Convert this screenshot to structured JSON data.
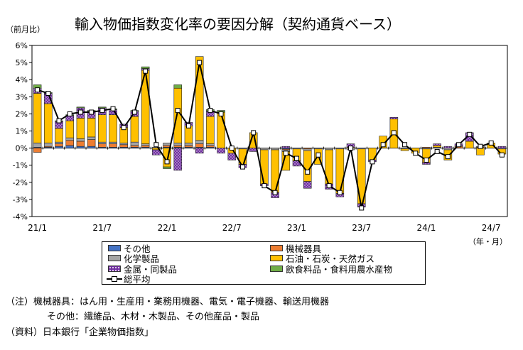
{
  "title": "輸入物価指数変化率の要因分解（契約通貨ベース）",
  "unit_label": "（前月比）",
  "period_label": "（年・月）",
  "chart_data": {
    "type": "bar",
    "subtype": "stacked-bar-with-line",
    "ylim": [
      -4,
      6
    ],
    "yticks": [
      "6%",
      "5%",
      "4%",
      "3%",
      "2%",
      "1%",
      "0%",
      "-1%",
      "-2%",
      "-3%",
      "-4%"
    ],
    "xtick_labels": [
      "21/1",
      "21/7",
      "22/1",
      "22/7",
      "23/1",
      "23/7",
      "24/1",
      "24/7"
    ],
    "months": [
      "21/1",
      "21/2",
      "21/3",
      "21/4",
      "21/5",
      "21/6",
      "21/7",
      "21/8",
      "21/9",
      "21/10",
      "21/11",
      "21/12",
      "22/1",
      "22/2",
      "22/3",
      "22/4",
      "22/5",
      "22/6",
      "22/7",
      "22/8",
      "22/9",
      "22/10",
      "22/11",
      "22/12",
      "23/1",
      "23/2",
      "23/3",
      "23/4",
      "23/5",
      "23/6",
      "23/7",
      "23/8",
      "23/9",
      "23/10",
      "23/11",
      "23/12",
      "24/1",
      "24/2",
      "24/3",
      "24/4",
      "24/5",
      "24/6",
      "24/7",
      "24/8"
    ],
    "series": [
      {
        "name": "その他",
        "color": "#4472c4",
        "values": [
          0.05,
          0.05,
          0.1,
          0.15,
          0.1,
          0.1,
          0.05,
          0.05,
          0.05,
          0.05,
          0.05,
          0.0,
          0.05,
          0.05,
          0.05,
          0.05,
          0.05,
          0.0,
          0.0,
          0.0,
          0.0,
          0.0,
          0.0,
          -0.05,
          0.0,
          0.0,
          0.0,
          0.0,
          0.0,
          0.0,
          0.0,
          0.0,
          0.0,
          0.0,
          0.0,
          0.0,
          0.0,
          0.0,
          0.0,
          0.0,
          0.0,
          0.0,
          0.0,
          0.0
        ]
      },
      {
        "name": "機械器具",
        "color": "#ed7d31",
        "values": [
          -0.25,
          0.05,
          0.15,
          0.3,
          0.3,
          0.4,
          0.2,
          0.2,
          0.15,
          0.1,
          0.1,
          0.0,
          0.1,
          0.1,
          0.1,
          0.2,
          0.1,
          0.0,
          0.0,
          0.0,
          0.0,
          0.0,
          0.0,
          -0.05,
          0.0,
          -0.05,
          0.0,
          0.0,
          0.0,
          0.0,
          0.0,
          0.0,
          0.0,
          0.0,
          0.0,
          0.0,
          0.05,
          0.0,
          0.0,
          0.1,
          0.0,
          0.05,
          0.0,
          0.0
        ]
      },
      {
        "name": "化学製品",
        "color": "#a5a5a5",
        "values": [
          0.25,
          0.2,
          0.1,
          0.15,
          0.15,
          0.15,
          0.1,
          0.1,
          0.1,
          0.2,
          0.1,
          0.05,
          0.15,
          0.15,
          0.15,
          0.2,
          0.1,
          0.0,
          0.0,
          -0.05,
          0.0,
          -0.1,
          -0.1,
          -0.1,
          -0.05,
          -0.1,
          -0.05,
          -0.1,
          -0.05,
          -0.1,
          -0.05,
          0.0,
          0.0,
          0.0,
          -0.05,
          0.0,
          -0.05,
          0.05,
          -0.1,
          0.05,
          0.0,
          0.05,
          0.0,
          -0.05
        ]
      },
      {
        "name": "石油・石炭・天然ガス",
        "color": "#ffc000",
        "values": [
          2.9,
          2.3,
          0.8,
          1.0,
          1.2,
          1.1,
          1.6,
          1.6,
          0.9,
          1.5,
          4.3,
          -0.1,
          -1.1,
          3.2,
          1.0,
          4.9,
          1.6,
          2.1,
          -0.3,
          -0.9,
          0.9,
          -2.0,
          -2.5,
          -1.1,
          -0.7,
          -1.8,
          -0.9,
          -2.0,
          -2.6,
          0.05,
          -3.2,
          -0.7,
          0.7,
          1.7,
          -0.1,
          -0.3,
          -0.8,
          0.1,
          -0.6,
          0.0,
          0.4,
          -0.4,
          0.3,
          -0.3
        ]
      },
      {
        "name": "金属・同製品",
        "color": "#7030a0",
        "pattern": "dotted",
        "values": [
          0.3,
          0.6,
          0.4,
          0.3,
          0.6,
          0.4,
          0.4,
          0.3,
          0.2,
          0.3,
          0.1,
          -0.3,
          0.0,
          -1.3,
          0.2,
          -0.3,
          0.3,
          -0.3,
          -0.4,
          -0.2,
          -0.2,
          -0.1,
          -0.3,
          0.1,
          -0.3,
          -0.4,
          0.0,
          -0.3,
          -0.2,
          0.2,
          -0.2,
          -0.1,
          0.0,
          0.1,
          0.0,
          0.0,
          -0.1,
          0.1,
          0.1,
          0.1,
          0.5,
          0.0,
          0.0,
          0.1
        ]
      },
      {
        "name": "飲食料品・食料用農水産物",
        "color": "#70ad47",
        "values": [
          0.2,
          0.05,
          0.05,
          0.05,
          0.05,
          0.05,
          0.05,
          0.05,
          0.0,
          0.05,
          0.1,
          0.0,
          -0.1,
          0.2,
          0.0,
          0.0,
          0.1,
          0.1,
          0.0,
          0.0,
          0.0,
          0.0,
          0.0,
          0.0,
          0.0,
          0.0,
          0.0,
          0.0,
          0.0,
          0.0,
          0.0,
          0.0,
          0.0,
          0.0,
          0.0,
          0.0,
          0.0,
          0.0,
          0.0,
          0.0,
          0.0,
          0.0,
          0.0,
          0.0
        ]
      },
      {
        "name": "総平均",
        "color": "#000000",
        "type": "line",
        "values": [
          3.4,
          3.2,
          1.6,
          2.0,
          2.1,
          2.1,
          2.2,
          2.3,
          1.2,
          2.1,
          4.5,
          0.2,
          -0.8,
          2.2,
          1.3,
          5.0,
          2.2,
          2.0,
          0.0,
          -1.1,
          0.9,
          -2.2,
          -2.6,
          -0.3,
          -0.6,
          -1.4,
          -0.4,
          -2.2,
          -2.6,
          0.0,
          -3.5,
          -0.8,
          0.2,
          0.9,
          0.2,
          -0.3,
          -0.7,
          -0.2,
          -0.5,
          0.2,
          0.8,
          0.1,
          0.3,
          -0.4
        ]
      }
    ]
  },
  "legend": {
    "items": [
      {
        "label": "その他"
      },
      {
        "label": "機械器具"
      },
      {
        "label": "化学製品"
      },
      {
        "label": "石油・石炭・天然ガス"
      },
      {
        "label": "金属・同製品"
      },
      {
        "label": "飲食料品・食料用農水産物"
      },
      {
        "label": "総平均"
      }
    ]
  },
  "notes": {
    "line1": "（注）機械器具：はん用・生産用・業務用機器、電気・電子機器、輸送用機器",
    "line2": "その他：繊維品、木材・木製品、その他産品・製品",
    "source": "（資料）日本銀行「企業物価指数」"
  }
}
